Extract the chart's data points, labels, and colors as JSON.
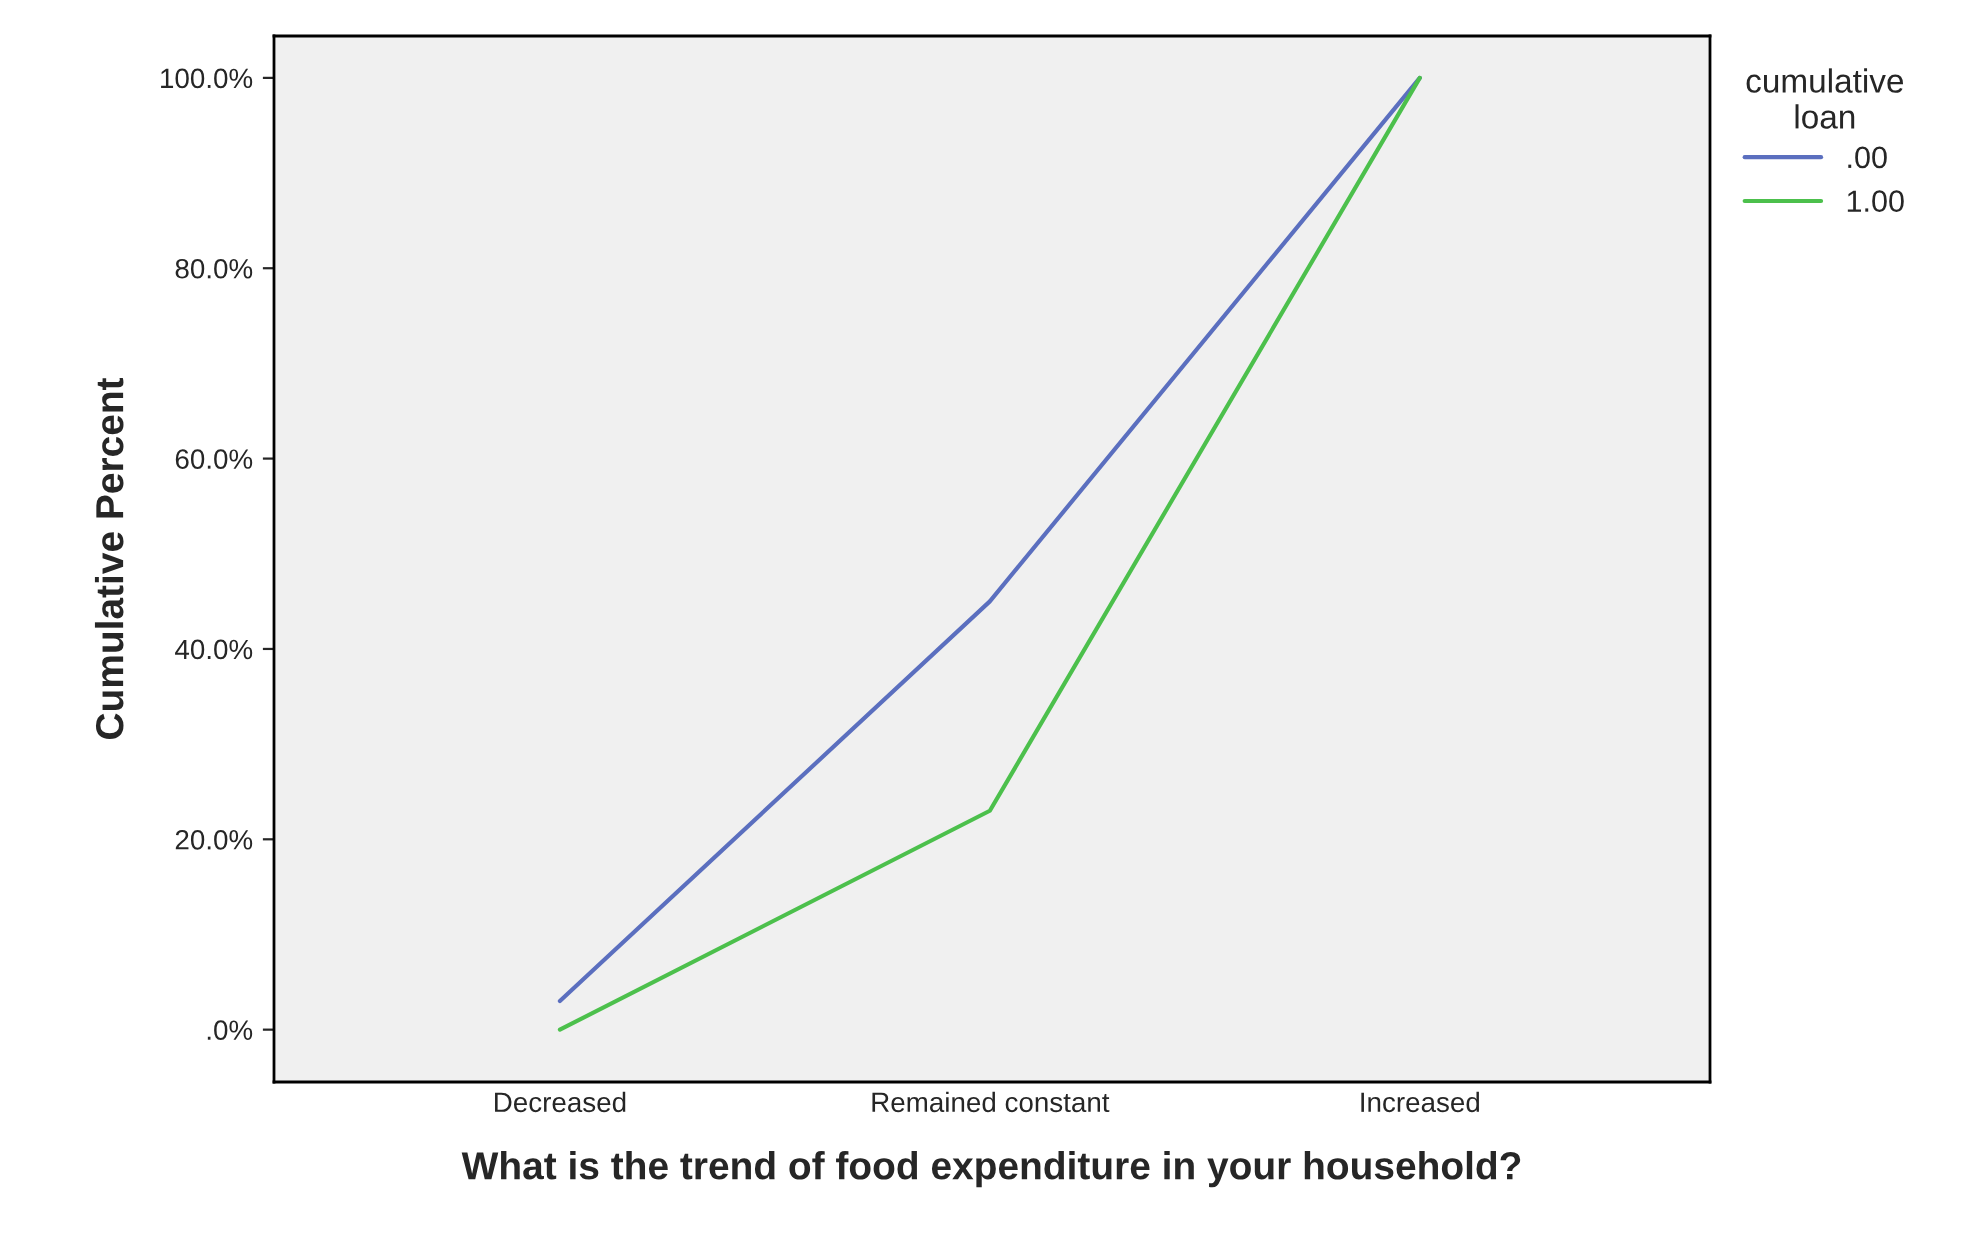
{
  "chart_data": {
    "type": "line",
    "xlabel": "What is the trend of food expenditure in your household?",
    "ylabel": "Cumulative Percent",
    "legend_title": "cumulative loan",
    "legend": "top right",
    "categories": [
      "Decreased",
      "Remained constant",
      "Increased"
    ],
    "series": [
      {
        "name": ".00",
        "color": "#5b6fbf",
        "values": [
          3,
          45,
          100
        ]
      },
      {
        "name": "1.00",
        "color": "#4cc04c",
        "values": [
          0,
          23,
          100
        ]
      }
    ],
    "ylim": [
      -5.5,
      104.4
    ],
    "yticks": [
      {
        "value": 0,
        "label": ".0%"
      },
      {
        "value": 20,
        "label": "20.0%"
      },
      {
        "value": 40,
        "label": "40.0%"
      },
      {
        "value": 60,
        "label": "60.0%"
      },
      {
        "value": 80,
        "label": "80.0%"
      },
      {
        "value": 100,
        "label": "100.0%"
      }
    ],
    "grid": false,
    "marker": "none",
    "line_style": "solid"
  }
}
